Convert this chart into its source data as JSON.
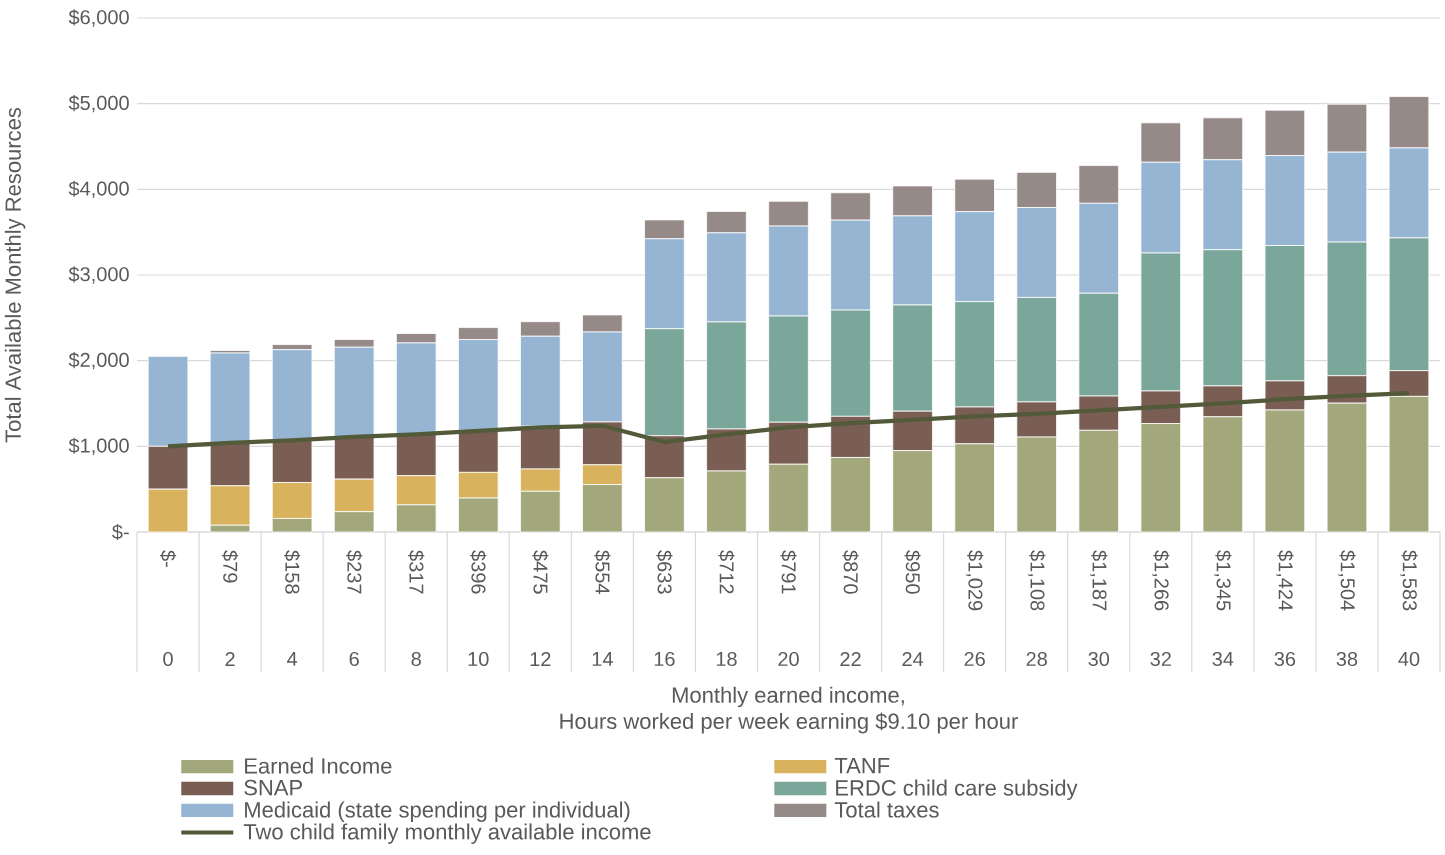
{
  "chart_data": {
    "type": "bar",
    "stacked": true,
    "xlabel": "Monthly earned income,",
    "ylabel": "Total Available Monthly Resources",
    "categories": [
      "$-",
      "$79",
      "$158",
      "$237",
      "$317",
      "$396",
      "$475",
      "$554",
      "$633",
      "$712",
      "$791",
      "$870",
      "$950",
      "$1,029",
      "$1,108",
      "$1,187",
      "$1,266",
      "$1,345",
      "$1,424",
      "$1,504",
      "$1,583"
    ],
    "series": [
      {
        "name": "Earned Income",
        "color": "#a3a87c",
        "values": [
          0,
          79,
          158,
          237,
          317,
          396,
          475,
          554,
          633,
          712,
          791,
          870,
          950,
          1029,
          1108,
          1187,
          1266,
          1345,
          1424,
          1504,
          1583
        ]
      },
      {
        "name": "TANF",
        "color": "#d8b25c",
        "values": [
          500,
          460,
          420,
          380,
          340,
          300,
          260,
          230,
          0,
          0,
          0,
          0,
          0,
          0,
          0,
          0,
          0,
          0,
          0,
          0,
          0
        ]
      },
      {
        "name": "SNAP",
        "color": "#7a5e53",
        "values": [
          500,
          500,
          500,
          490,
          490,
          490,
          500,
          500,
          490,
          490,
          490,
          480,
          460,
          430,
          410,
          400,
          380,
          360,
          340,
          320,
          300
        ]
      },
      {
        "name": "ERDC child care subsidy",
        "color": "#7ba79a",
        "values": [
          0,
          0,
          0,
          0,
          0,
          0,
          0,
          0,
          1250,
          1250,
          1240,
          1240,
          1240,
          1230,
          1220,
          1200,
          1610,
          1590,
          1580,
          1560,
          1550
        ]
      },
      {
        "name": "Medicaid (state spending per individual)",
        "color": "#95b5d2",
        "values": [
          1050,
          1050,
          1050,
          1050,
          1060,
          1060,
          1050,
          1050,
          1050,
          1040,
          1050,
          1050,
          1040,
          1050,
          1050,
          1050,
          1060,
          1050,
          1050,
          1050,
          1050
        ]
      },
      {
        "name": "Total taxes",
        "color": "#968a88",
        "values": [
          0,
          30,
          60,
          90,
          110,
          140,
          170,
          200,
          220,
          250,
          290,
          320,
          350,
          380,
          410,
          440,
          460,
          490,
          530,
          560,
          600
        ]
      },
      {
        "name": "Two child family monthly available income",
        "type": "line",
        "color": "#535a3a",
        "values": [
          1000,
          1040,
          1070,
          1110,
          1140,
          1180,
          1220,
          1240,
          1050,
          1140,
          1220,
          1270,
          1310,
          1350,
          1380,
          1420,
          1460,
          1500,
          1550,
          1590,
          1620
        ]
      }
    ],
    "ylim": [
      0,
      6000
    ],
    "yticks": [
      {
        "value": 0,
        "label": "$-"
      },
      {
        "value": 1000,
        "label": "$1,000"
      },
      {
        "value": 2000,
        "label": "$2,000"
      },
      {
        "value": 3000,
        "label": "$3,000"
      },
      {
        "value": 4000,
        "label": "$4,000"
      },
      {
        "value": 5000,
        "label": "$5,000"
      },
      {
        "value": 6000,
        "label": "$6,000"
      }
    ],
    "grid": "y",
    "legend": "bottom",
    "annotations": [
      "0",
      "2",
      "4",
      "6",
      "8",
      "10",
      "12",
      "14",
      "16",
      "18",
      "20",
      "22",
      "24",
      "26",
      "28",
      "30",
      "32",
      "34",
      "36",
      "38",
      "40",
      "Hours worked per week earning $9.10 per hour"
    ]
  }
}
